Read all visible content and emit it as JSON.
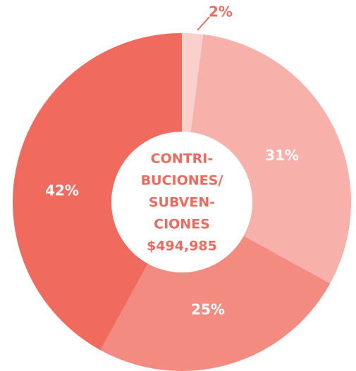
{
  "chart_data": {
    "type": "donut",
    "values": [
      2,
      31,
      25,
      42
    ],
    "value_labels": [
      "2%",
      "31%",
      "25%",
      "42%"
    ],
    "colors": [
      "#f9d0cc",
      "#f7b0aa",
      "#f48b80",
      "#f06b5e"
    ],
    "center_label": [
      "CONTRI-",
      "BUCIONES/",
      "SUBVEN-",
      "CIONES",
      "$494,985"
    ]
  }
}
